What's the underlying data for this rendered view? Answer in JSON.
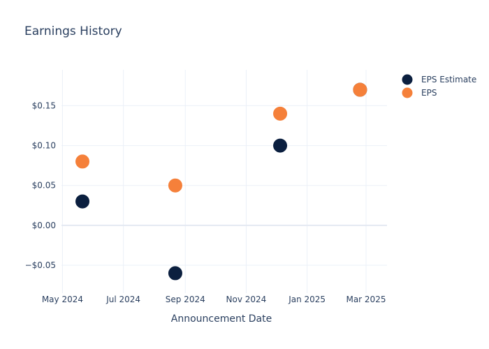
{
  "chart_data": {
    "type": "scatter",
    "title": "Earnings History",
    "xlabel": "Announcement Date",
    "ylabel": "",
    "x_ticks": [
      "2024-05-01",
      "2024-07-01",
      "2024-09-01",
      "2024-11-01",
      "2025-01-01",
      "2025-03-01"
    ],
    "x_tick_labels": [
      "May 2024",
      "Jul 2024",
      "Sep 2024",
      "Nov 2024",
      "Jan 2025",
      "Mar 2025"
    ],
    "xlim": [
      "2024-04-30",
      "2025-03-22"
    ],
    "y_ticks": [
      -0.05,
      0,
      0.05,
      0.1,
      0.15
    ],
    "y_tick_labels": [
      "−$0.05",
      "$0.00",
      "$0.05",
      "$0.10",
      "$0.15"
    ],
    "ylim": [
      -0.085,
      0.195
    ],
    "grid": true,
    "legend_position": "top-right",
    "series": [
      {
        "name": "EPS Estimate",
        "color": "#0b1f3f",
        "x": [
          "2024-05-21",
          "2024-08-22",
          "2024-12-05",
          "2025-02-23"
        ],
        "y": [
          0.03,
          -0.06,
          0.1,
          0.17
        ]
      },
      {
        "name": "EPS",
        "color": "#f5803a",
        "x": [
          "2024-05-21",
          "2024-08-22",
          "2024-12-05",
          "2025-02-23"
        ],
        "y": [
          0.08,
          0.05,
          0.14,
          0.17
        ]
      }
    ]
  }
}
